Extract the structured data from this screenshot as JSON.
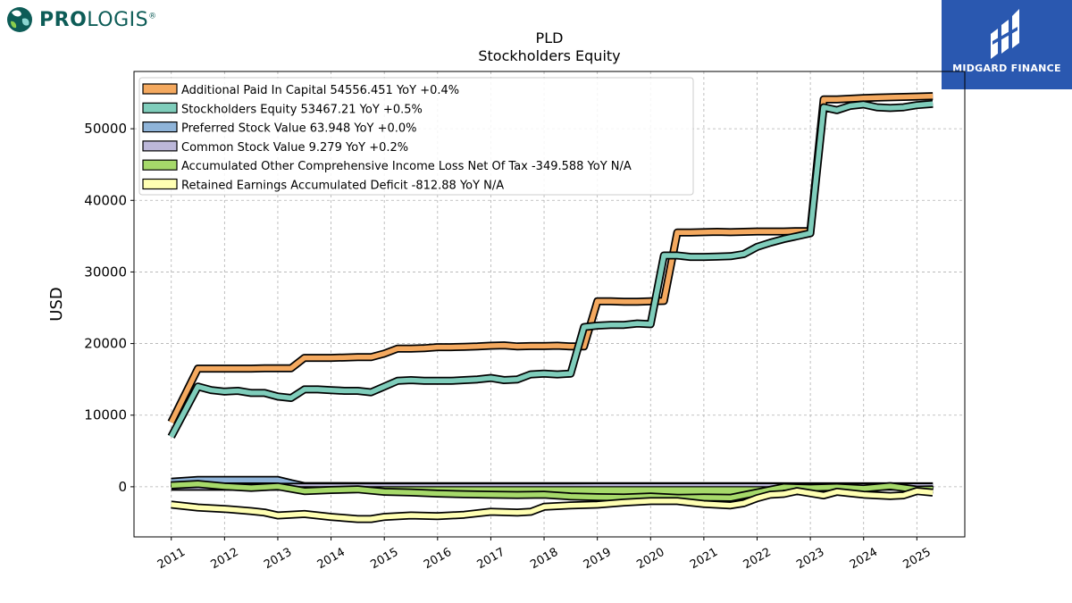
{
  "header": {
    "company_logo": {
      "text_bold": "PRO",
      "text_rest": "LOGIS",
      "registered": "®",
      "icon": "prologis-globe-icon"
    },
    "brand": {
      "name": "MIDGARD FINANCE",
      "icon": "midgard-logo-icon",
      "bg_color": "#2a58b0"
    }
  },
  "chart_data": {
    "type": "line",
    "title": "PLD",
    "subtitle": "Stockholders  Equity",
    "ylabel": "USD",
    "xlabel": "",
    "ylim": [
      -7000,
      58000
    ],
    "xlim": [
      2010.3,
      2025.9
    ],
    "yticks": [
      0,
      10000,
      20000,
      30000,
      40000,
      50000
    ],
    "xticks": [
      "2011",
      "2012",
      "2013",
      "2014",
      "2015",
      "2016",
      "2017",
      "2018",
      "2019",
      "2020",
      "2021",
      "2022",
      "2023",
      "2024",
      "2025"
    ],
    "grid": true,
    "legend_position": "top-left",
    "series": [
      {
        "name": "Additional Paid In Capital",
        "legend": "Additional Paid In Capital  54556.451 YoY +0.4%",
        "color": "#f4a95f",
        "fill_to_zero": false,
        "x": [
          2011.0,
          2011.5,
          2011.75,
          2012.0,
          2012.25,
          2012.5,
          2012.75,
          2013.0,
          2013.25,
          2013.5,
          2013.75,
          2014.0,
          2014.25,
          2014.5,
          2014.75,
          2015.0,
          2015.25,
          2015.5,
          2015.75,
          2016.0,
          2016.25,
          2016.5,
          2016.75,
          2017.0,
          2017.25,
          2017.5,
          2017.75,
          2018.0,
          2018.25,
          2018.5,
          2018.75,
          2019.0,
          2019.25,
          2019.5,
          2019.75,
          2020.0,
          2020.25,
          2020.5,
          2020.75,
          2021.0,
          2021.25,
          2021.5,
          2021.75,
          2022.0,
          2022.25,
          2022.5,
          2022.75,
          2023.0,
          2023.25,
          2023.5,
          2023.75,
          2024.0,
          2024.25,
          2024.5,
          2024.75,
          2025.0,
          2025.3
        ],
        "values": [
          9000,
          16500,
          16500,
          16500,
          16500,
          16500,
          16550,
          16550,
          16550,
          18000,
          18000,
          18000,
          18050,
          18100,
          18100,
          18600,
          19300,
          19300,
          19350,
          19500,
          19500,
          19550,
          19600,
          19700,
          19750,
          19600,
          19650,
          19650,
          19700,
          19600,
          19600,
          25900,
          25900,
          25850,
          25850,
          25900,
          25950,
          35500,
          35500,
          35550,
          35600,
          35550,
          35600,
          35650,
          35650,
          35650,
          35700,
          35700,
          54100,
          54100,
          54200,
          54300,
          54350,
          54400,
          54450,
          54500,
          54556.451
        ]
      },
      {
        "name": "Stockholders Equity",
        "legend": "Stockholders Equity  53467.21 YoY +0.5%",
        "color": "#7fcdbb",
        "fill_to_zero": false,
        "x": [
          2011.0,
          2011.5,
          2011.75,
          2012.0,
          2012.25,
          2012.5,
          2012.75,
          2013.0,
          2013.25,
          2013.5,
          2013.75,
          2014.0,
          2014.25,
          2014.5,
          2014.75,
          2015.0,
          2015.25,
          2015.5,
          2015.75,
          2016.0,
          2016.25,
          2016.5,
          2016.75,
          2017.0,
          2017.25,
          2017.5,
          2017.75,
          2018.0,
          2018.25,
          2018.5,
          2018.75,
          2019.0,
          2019.25,
          2019.5,
          2019.75,
          2020.0,
          2020.25,
          2020.5,
          2020.75,
          2021.0,
          2021.25,
          2021.5,
          2021.75,
          2022.0,
          2022.25,
          2022.5,
          2022.75,
          2023.0,
          2023.25,
          2023.5,
          2023.75,
          2024.0,
          2024.25,
          2024.5,
          2024.75,
          2025.0,
          2025.3
        ],
        "values": [
          7000,
          14000,
          13500,
          13300,
          13400,
          13100,
          13100,
          12600,
          12400,
          13600,
          13600,
          13500,
          13400,
          13400,
          13200,
          14000,
          14800,
          14900,
          14800,
          14800,
          14800,
          14900,
          15000,
          15200,
          14900,
          15000,
          15700,
          15800,
          15700,
          15800,
          22300,
          22500,
          22600,
          22600,
          22800,
          22700,
          32300,
          32300,
          32100,
          32100,
          32150,
          32200,
          32500,
          33500,
          34100,
          34600,
          35000,
          35400,
          53000,
          52600,
          53200,
          53400,
          53000,
          52900,
          53000,
          53300,
          53467.21
        ]
      },
      {
        "name": "Preferred Stock Value",
        "legend": "Preferred Stock Value  63.948 YoY +0.0%",
        "color": "#8fb4d9",
        "fill_to_zero": true,
        "x": [
          2011.0,
          2011.5,
          2012.0,
          2012.5,
          2013.0,
          2013.25,
          2013.5,
          2014.0,
          2015.0,
          2016.0,
          2017.0,
          2018.0,
          2019.0,
          2020.0,
          2021.0,
          2022.0,
          2023.0,
          2024.0,
          2025.3
        ],
        "values": [
          700,
          950,
          950,
          950,
          950,
          500,
          100,
          100,
          80,
          80,
          80,
          75,
          70,
          70,
          70,
          68,
          65,
          64,
          63.948
        ]
      },
      {
        "name": "Common Stock Value",
        "legend": "Common Stock Value  9.279 YoY +0.2%",
        "color": "#bcb7d9",
        "fill_to_zero": true,
        "x": [
          2011.0,
          2012.0,
          2013.0,
          2014.0,
          2015.0,
          2016.0,
          2017.0,
          2018.0,
          2019.0,
          2020.0,
          2021.0,
          2022.0,
          2023.0,
          2024.0,
          2025.3
        ],
        "values": [
          5,
          5,
          5,
          5,
          5,
          5,
          5,
          5,
          6,
          7,
          7,
          7,
          9,
          9,
          9.279
        ]
      },
      {
        "name": "Accumulated Other Comprehensive Income Loss Net Of Tax",
        "legend": "Accumulated Other Comprehensive Income Loss Net Of Tax  -349.588 YoY N/A",
        "color": "#a6d96a",
        "fill_to_zero": true,
        "x": [
          2011.0,
          2011.5,
          2012.0,
          2012.5,
          2013.0,
          2013.5,
          2014.0,
          2014.5,
          2015.0,
          2015.5,
          2016.0,
          2016.5,
          2017.0,
          2017.5,
          2018.0,
          2018.5,
          2019.0,
          2019.5,
          2020.0,
          2020.5,
          2021.0,
          2021.5,
          2022.0,
          2022.5,
          2023.0,
          2023.5,
          2024.0,
          2024.5,
          2025.0,
          2025.3
        ],
        "values": [
          200,
          400,
          50,
          -150,
          50,
          -600,
          -450,
          -350,
          -700,
          -800,
          -950,
          -1050,
          -1100,
          -1150,
          -1100,
          -1350,
          -1450,
          -1500,
          -1350,
          -1550,
          -1500,
          -1550,
          -800,
          -50,
          -150,
          -50,
          -250,
          100,
          -400,
          -349.588
        ]
      },
      {
        "name": "Retained Earnings Accumulated Deficit",
        "legend": "Retained Earnings Accumulated Deficit  -812.88 YoY N/A",
        "color": "#ffffb3",
        "fill_to_zero": false,
        "x": [
          2011.0,
          2011.5,
          2012.0,
          2012.5,
          2012.75,
          2013.0,
          2013.5,
          2014.0,
          2014.5,
          2014.75,
          2015.0,
          2015.5,
          2016.0,
          2016.5,
          2017.0,
          2017.5,
          2017.75,
          2018.0,
          2018.5,
          2019.0,
          2019.5,
          2020.0,
          2020.5,
          2021.0,
          2021.5,
          2021.75,
          2022.0,
          2022.25,
          2022.5,
          2022.75,
          2023.0,
          2023.25,
          2023.5,
          2023.75,
          2024.0,
          2024.25,
          2024.5,
          2024.75,
          2025.0,
          2025.3
        ],
        "values": [
          -2500,
          -2900,
          -3100,
          -3400,
          -3600,
          -4000,
          -3800,
          -4200,
          -4500,
          -4500,
          -4200,
          -4000,
          -4100,
          -3900,
          -3500,
          -3600,
          -3500,
          -2800,
          -2600,
          -2500,
          -2200,
          -2000,
          -2000,
          -2400,
          -2600,
          -2300,
          -1600,
          -1100,
          -1000,
          -600,
          -900,
          -1200,
          -700,
          -900,
          -1100,
          -1200,
          -1300,
          -1200,
          -600,
          -812.88
        ]
      }
    ]
  }
}
